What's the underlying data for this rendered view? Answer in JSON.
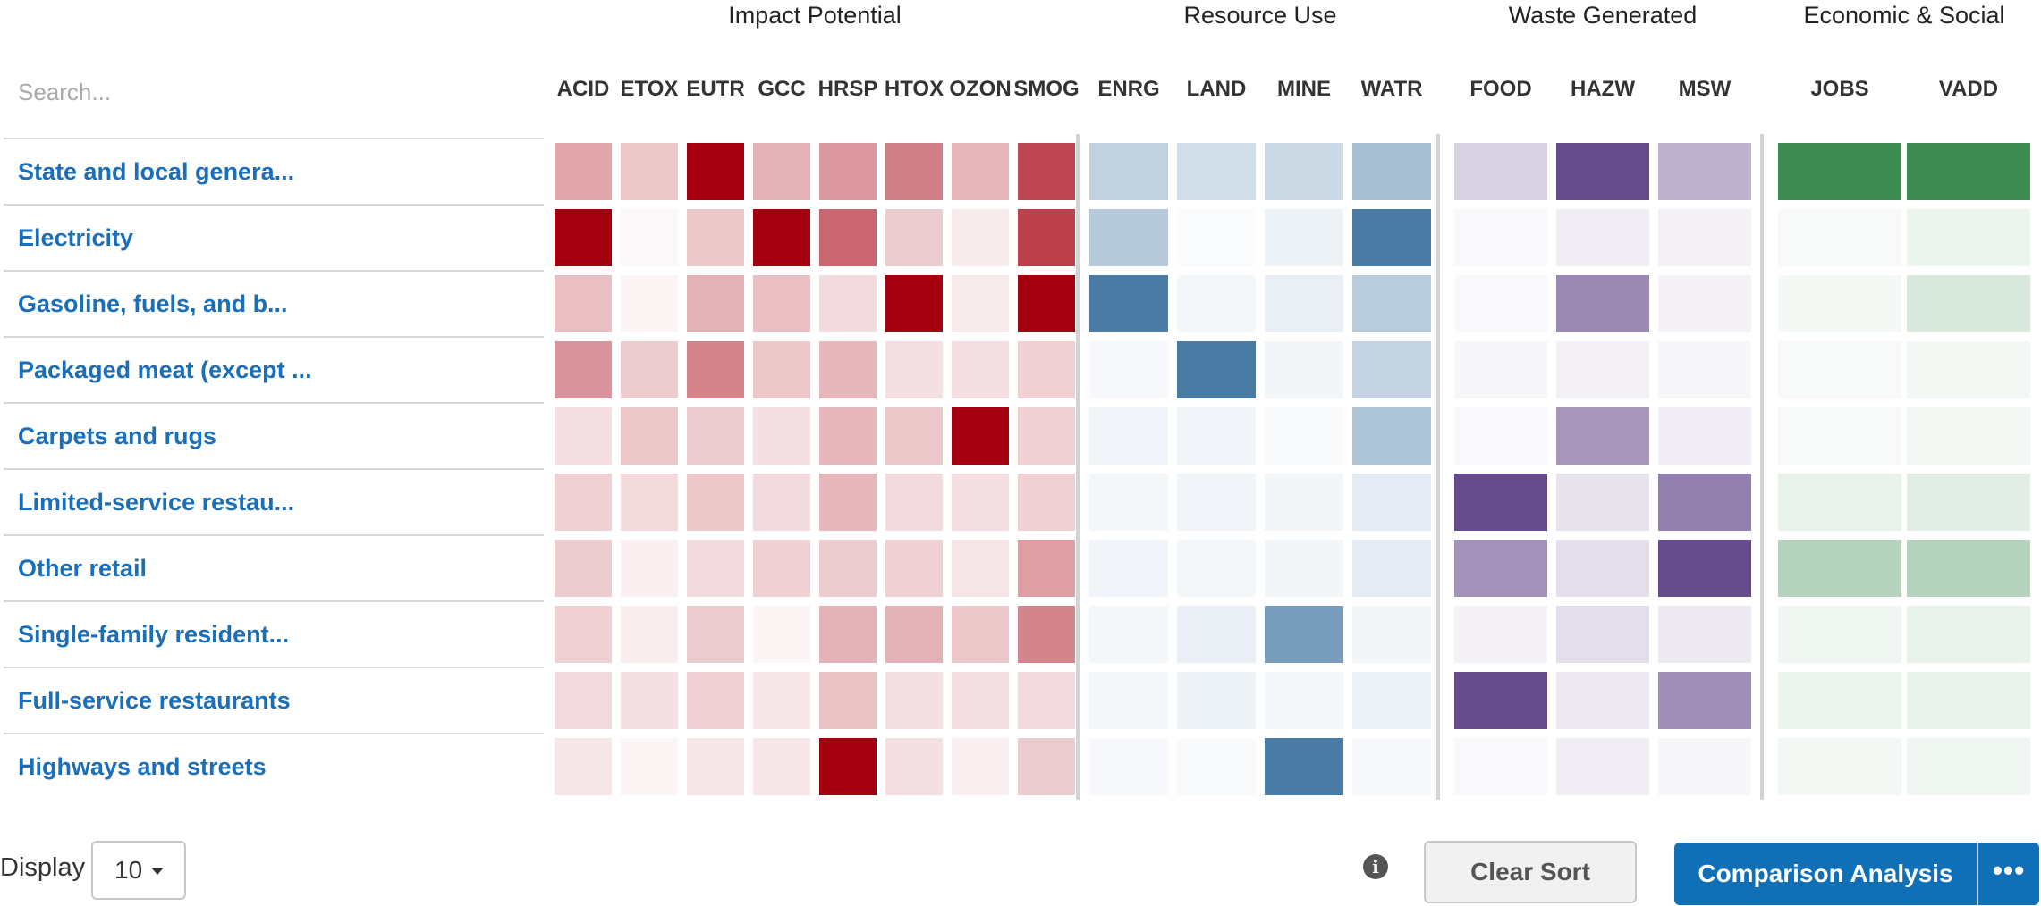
{
  "search": {
    "placeholder": "Search..."
  },
  "footer": {
    "display_label": "Display",
    "display_value": "10",
    "clear_sort_label": "Clear Sort",
    "comparison_label": "Comparison Analysis",
    "more_label": "•••",
    "info_icon": "info-icon",
    "dropdown_icon": "caret-down-icon"
  },
  "colors": {
    "impact": "#a50010",
    "resource": "#4a7ba5",
    "waste": "#654a8c",
    "econ": "#3e8c52"
  },
  "chart_data": {
    "type": "heatmap",
    "groups": [
      {
        "title": "Impact Potential",
        "key": "impact",
        "columns": [
          "ACID",
          "ETOX",
          "EUTR",
          "GCC",
          "HRSP",
          "HTOX",
          "OZON",
          "SMOG"
        ]
      },
      {
        "title": "Resource Use",
        "key": "resource",
        "columns": [
          "ENRG",
          "LAND",
          "MINE",
          "WATR"
        ]
      },
      {
        "title": "Waste Generated",
        "key": "waste",
        "columns": [
          "FOOD",
          "HAZW",
          "MSW"
        ]
      },
      {
        "title": "Economic & Social",
        "key": "econ",
        "columns": [
          "JOBS",
          "VADD"
        ]
      }
    ],
    "rows": [
      "State and local genera...",
      "Electricity",
      "Gasoline, fuels, and b...",
      "Packaged meat (except ...",
      "Carpets and rugs",
      "Limited-service restau...",
      "Other retail",
      "Single-family resident...",
      "Full-service restaurants",
      "Highways and streets"
    ],
    "values": [
      [
        0.35,
        0.22,
        1.0,
        0.3,
        0.4,
        0.5,
        0.28,
        0.72,
        0.35,
        0.25,
        0.28,
        0.48,
        0.25,
        1.0,
        0.42,
        1.0,
        1.0
      ],
      [
        1.0,
        0.03,
        0.22,
        1.0,
        0.6,
        0.2,
        0.08,
        0.75,
        0.4,
        0.03,
        0.1,
        1.0,
        0.04,
        0.1,
        0.08,
        0.04,
        0.1
      ],
      [
        0.25,
        0.04,
        0.3,
        0.25,
        0.14,
        1.0,
        0.08,
        1.0,
        1.0,
        0.06,
        0.12,
        0.38,
        0.04,
        0.65,
        0.07,
        0.05,
        0.2
      ],
      [
        0.42,
        0.2,
        0.48,
        0.22,
        0.28,
        0.12,
        0.12,
        0.18,
        0.05,
        1.0,
        0.07,
        0.33,
        0.05,
        0.08,
        0.05,
        0.04,
        0.06
      ],
      [
        0.12,
        0.22,
        0.2,
        0.12,
        0.28,
        0.22,
        1.0,
        0.18,
        0.08,
        0.08,
        0.04,
        0.45,
        0.04,
        0.58,
        0.1,
        0.04,
        0.06
      ],
      [
        0.18,
        0.15,
        0.22,
        0.14,
        0.28,
        0.14,
        0.12,
        0.18,
        0.06,
        0.08,
        0.07,
        0.15,
        1.0,
        0.15,
        0.7,
        0.12,
        0.15
      ],
      [
        0.2,
        0.06,
        0.14,
        0.18,
        0.2,
        0.18,
        0.1,
        0.38,
        0.08,
        0.06,
        0.07,
        0.15,
        0.6,
        0.18,
        1.0,
        0.38,
        0.38
      ],
      [
        0.18,
        0.07,
        0.2,
        0.04,
        0.3,
        0.3,
        0.22,
        0.48,
        0.06,
        0.12,
        0.75,
        0.07,
        0.07,
        0.18,
        0.12,
        0.08,
        0.12
      ],
      [
        0.14,
        0.12,
        0.18,
        0.1,
        0.24,
        0.12,
        0.12,
        0.14,
        0.06,
        0.1,
        0.06,
        0.1,
        1.0,
        0.12,
        0.62,
        0.1,
        0.12
      ],
      [
        0.1,
        0.04,
        0.1,
        0.1,
        1.0,
        0.12,
        0.06,
        0.2,
        0.05,
        0.04,
        1.0,
        0.05,
        0.04,
        0.1,
        0.05,
        0.06,
        0.08
      ]
    ]
  }
}
